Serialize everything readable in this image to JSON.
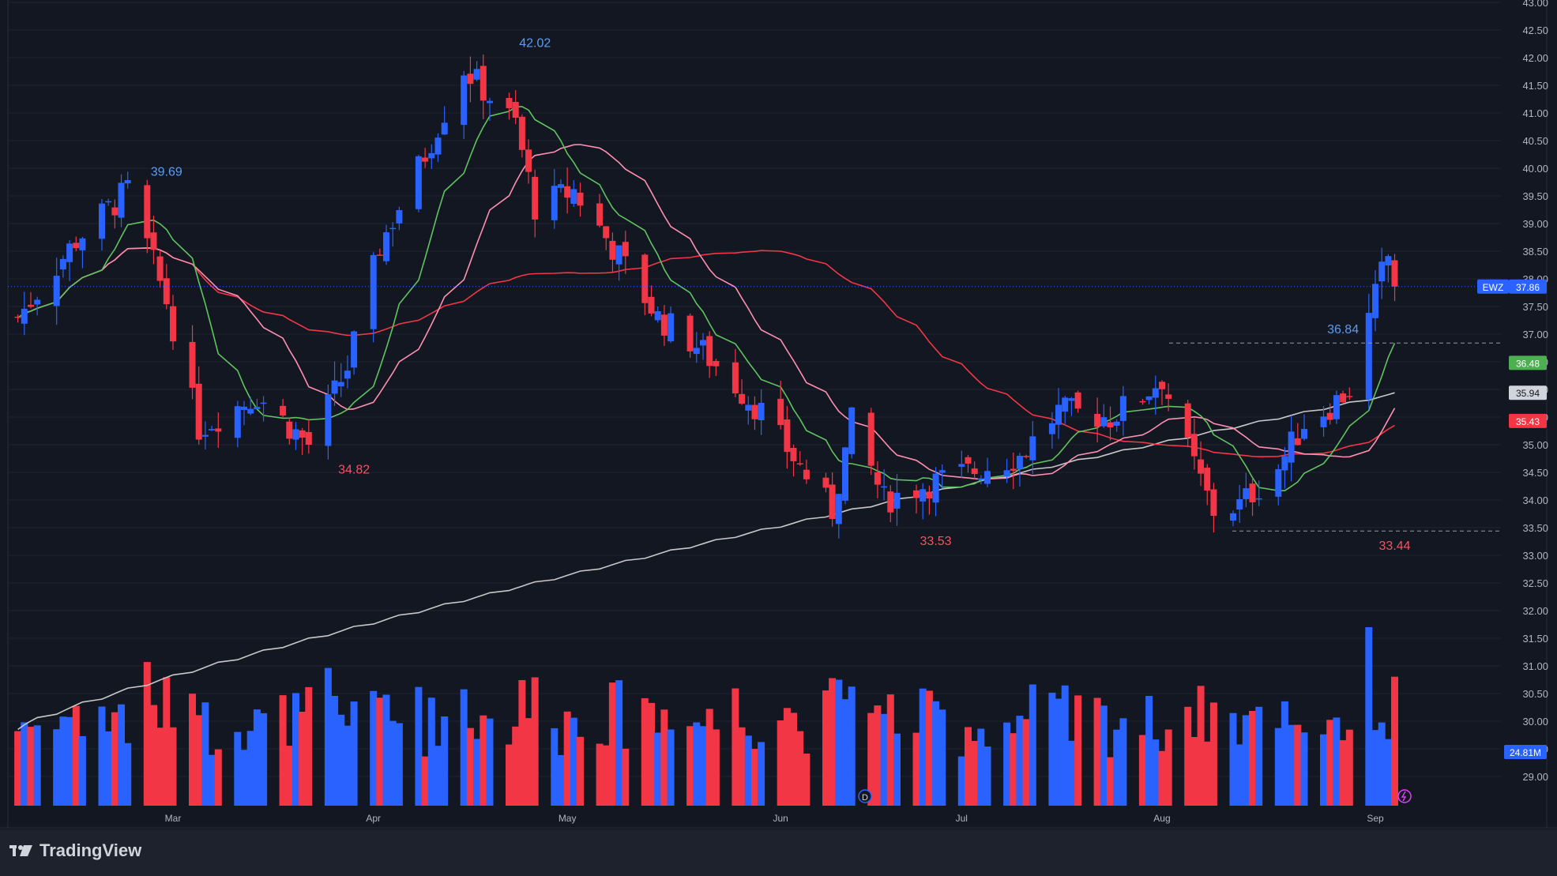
{
  "brand": {
    "name": "TradingView",
    "logo_icon": "tradingview-logo-icon"
  },
  "colors": {
    "background": "#131722",
    "up": "#2962ff",
    "down": "#f23645",
    "ma_fast": "#5fc35f",
    "ma_mid": "#ff8fb0",
    "ma_slow": "#f23645",
    "ma_long": "#c8c8c8",
    "grid": "#1f2330",
    "text": "#b2b5be"
  },
  "chart_data": {
    "type": "candlestick",
    "symbol": "EWZ",
    "last_price": "37.86",
    "y_ticks": [
      "43.00",
      "42.50",
      "42.00",
      "41.50",
      "41.00",
      "40.50",
      "40.00",
      "39.50",
      "39.00",
      "38.50",
      "38.00",
      "37.50",
      "37.00",
      "36.50",
      "36.00",
      "35.50",
      "35.00",
      "34.50",
      "34.00",
      "33.50",
      "33.00",
      "32.50",
      "32.00",
      "31.50",
      "31.00",
      "30.50",
      "30.00",
      "29.50",
      "29.00"
    ],
    "ylim": [
      28.8,
      43.0
    ],
    "x_ticks": [
      "Mar",
      "Apr",
      "May",
      "Jun",
      "Jul",
      "Aug",
      "Sep"
    ],
    "price_badges": [
      {
        "label": "36.48",
        "value": 36.48,
        "color": "#4caf50",
        "text_color": "#ffffff"
      },
      {
        "label": "35.94",
        "value": 35.94,
        "color": "#d1d4dc",
        "text_color": "#131722"
      },
      {
        "label": "35.43",
        "value": 35.43,
        "color": "#f23645",
        "text_color": "#ffffff"
      }
    ],
    "volume_badge": "24.81M",
    "annotations": [
      {
        "text": "39.69",
        "index": 17,
        "value": 39.69,
        "kind": "high"
      },
      {
        "text": "42.02",
        "index": 58,
        "value": 42.02,
        "kind": "high"
      },
      {
        "text": "34.82",
        "index": 38,
        "value": 34.82,
        "kind": "low"
      },
      {
        "text": "33.53",
        "index": 102,
        "value": 33.53,
        "kind": "low"
      },
      {
        "text": "36.84",
        "index": 147,
        "value": 36.84,
        "kind": "high"
      },
      {
        "text": "33.44",
        "index": 159,
        "value": 33.44,
        "kind": "low"
      }
    ],
    "key_points": [
      [
        "2024-02-06",
        37.3
      ],
      [
        "2024-02-15",
        38.7
      ],
      [
        "2024-02-23",
        39.6
      ],
      [
        "2024-02-29",
        37.6
      ],
      [
        "2024-03-05",
        35.3
      ],
      [
        "2024-03-14",
        35.9
      ],
      [
        "2024-03-22",
        35.0
      ],
      [
        "2024-03-28",
        36.4
      ],
      [
        "2024-04-02",
        38.6
      ],
      [
        "2024-04-08",
        40.0
      ],
      [
        "2024-04-15",
        41.8
      ],
      [
        "2024-04-23",
        40.8
      ],
      [
        "2024-04-26",
        39.3
      ],
      [
        "2024-05-02",
        39.6
      ],
      [
        "2024-05-09",
        38.4
      ],
      [
        "2024-05-15",
        37.3
      ],
      [
        "2024-05-21",
        36.8
      ],
      [
        "2024-05-31",
        35.6
      ],
      [
        "2024-06-06",
        34.6
      ],
      [
        "2024-06-11",
        33.8
      ],
      [
        "2024-06-14",
        35.4
      ],
      [
        "2024-06-19",
        34.0
      ],
      [
        "2024-06-26",
        34.3
      ],
      [
        "2024-07-02",
        34.5
      ],
      [
        "2024-07-10",
        34.8
      ],
      [
        "2024-07-16",
        35.6
      ],
      [
        "2024-07-24",
        35.5
      ],
      [
        "2024-07-29",
        35.9
      ],
      [
        "2024-08-01",
        36.2
      ],
      [
        "2024-08-05",
        34.9
      ],
      [
        "2024-08-09",
        33.8
      ],
      [
        "2024-08-13",
        33.9
      ],
      [
        "2024-08-19",
        34.6
      ],
      [
        "2024-08-23",
        35.4
      ],
      [
        "2024-08-27",
        35.7
      ],
      [
        "2024-08-30",
        36.0
      ],
      [
        "2024-09-04",
        38.1
      ],
      [
        "2024-09-05",
        38.4
      ],
      [
        "2024-09-06",
        37.86
      ]
    ],
    "x_labels": [
      "2024-03-01",
      "2024-04-01",
      "2024-05-01",
      "2024-06-03",
      "2024-07-01",
      "2024-08-01",
      "2024-09-03"
    ],
    "volume_range": [
      0,
      60
    ]
  }
}
